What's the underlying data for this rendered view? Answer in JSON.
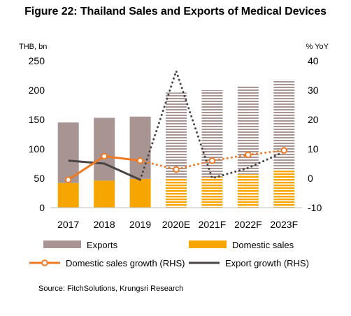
{
  "title": "Figure 22: Thailand Sales and Exports of Medical Devices",
  "source": "Source: FitchSolutions, Krungsri Research",
  "colors": {
    "exports": "#a89593",
    "domestic": "#f7a500",
    "domestic_growth": "#f07a24",
    "export_growth": "#4a4444"
  },
  "chart_data": {
    "type": "bar",
    "categories": [
      "2017",
      "2018",
      "2019",
      "2020E",
      "2021F",
      "2022F",
      "2023F"
    ],
    "ylabel": "THB, bn",
    "y2label": "% YoY",
    "ylim": [
      0,
      250
    ],
    "y2lim": [
      -10,
      40
    ],
    "yticks": [
      0,
      50,
      100,
      150,
      200,
      250
    ],
    "y2ticks": [
      -10,
      0,
      10,
      20,
      30,
      40
    ],
    "stacked": true,
    "series": [
      {
        "name": "Domestic sales",
        "kind": "bar",
        "axis": "left",
        "values": [
          42,
          46,
          49,
          50,
          52,
          57,
          63
        ]
      },
      {
        "name": "Exports",
        "kind": "bar",
        "axis": "left",
        "values": [
          103,
          107,
          106,
          146,
          148,
          149,
          155
        ]
      },
      {
        "name": "Domestic sales growth (RHS)",
        "kind": "line",
        "axis": "right",
        "values": [
          -0.5,
          7.5,
          6.0,
          3.0,
          6.0,
          8.0,
          9.5
        ],
        "actual_count": 3
      },
      {
        "name": "Export growth (RHS)",
        "kind": "line",
        "axis": "right",
        "values": [
          6.0,
          5.0,
          -0.5,
          36.5,
          0.0,
          3.5,
          9.0
        ],
        "actual_count": 3
      }
    ],
    "legend": [
      {
        "label": "Exports",
        "swatch": "bar-exports"
      },
      {
        "label": "Domestic sales",
        "swatch": "bar-domestic"
      },
      {
        "label": "Domestic sales growth (RHS)",
        "swatch": "line-domestic"
      },
      {
        "label": "Export growth (RHS)",
        "swatch": "line-export"
      }
    ],
    "legend_position": "bottom"
  }
}
